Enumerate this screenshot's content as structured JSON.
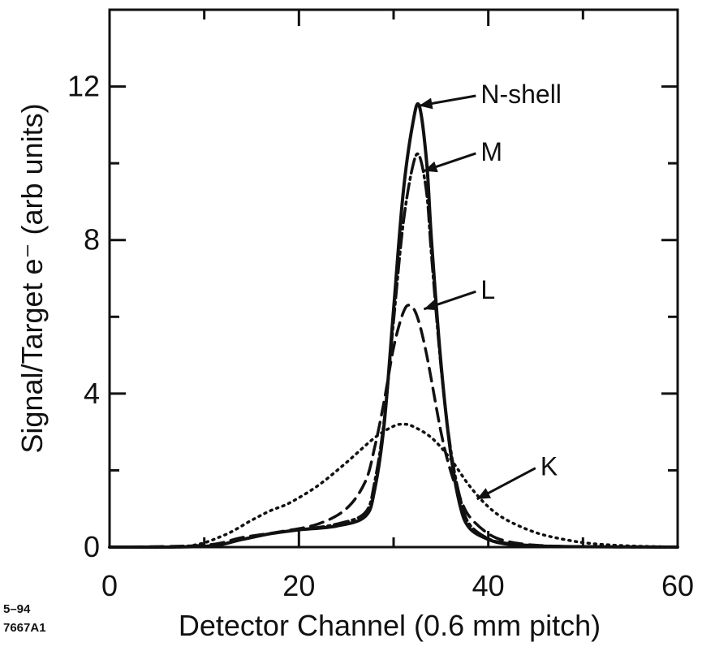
{
  "chart_data": {
    "type": "line",
    "title": "",
    "xlabel": "Detector Channel   (0.6 mm pitch)",
    "ylabel": "Signal/Target e⁻  (arb units)",
    "xlim": [
      0,
      60
    ],
    "ylim": [
      0,
      14
    ],
    "xticks": [
      0,
      20,
      40,
      60
    ],
    "yticks": [
      0,
      4,
      8,
      12
    ],
    "grid": false,
    "series": [
      {
        "name": "N-shell",
        "style": "solid",
        "x": [
          0,
          10,
          14,
          17,
          20,
          24,
          27,
          28,
          29,
          30,
          31,
          32,
          32.7,
          33.5,
          34,
          35,
          36,
          37,
          38,
          40,
          42,
          45,
          50,
          60
        ],
        "y": [
          0,
          0.02,
          0.2,
          0.35,
          0.45,
          0.55,
          0.8,
          1.5,
          3.2,
          6.2,
          9.2,
          11.0,
          11.5,
          10.0,
          8.0,
          4.8,
          2.5,
          1.1,
          0.5,
          0.2,
          0.08,
          0.03,
          0.01,
          0
        ]
      },
      {
        "name": "M",
        "style": "dash-dot",
        "x": [
          0,
          10,
          14,
          17,
          20,
          24,
          27,
          28,
          29,
          30,
          31,
          32,
          32.7,
          33.5,
          34,
          35,
          36,
          37,
          38,
          40,
          42,
          45,
          50,
          60
        ],
        "y": [
          0,
          0.02,
          0.2,
          0.35,
          0.45,
          0.6,
          0.9,
          1.7,
          3.3,
          5.9,
          8.4,
          9.9,
          10.2,
          9.2,
          7.6,
          4.7,
          2.6,
          1.3,
          0.6,
          0.22,
          0.1,
          0.04,
          0.01,
          0
        ]
      },
      {
        "name": "L",
        "style": "dashed",
        "x": [
          0,
          10,
          14,
          18,
          22,
          25,
          27,
          28,
          29,
          30,
          31,
          31.7,
          32.5,
          33.5,
          35,
          36,
          37,
          38,
          40,
          42,
          45,
          50,
          60
        ],
        "y": [
          0,
          0.05,
          0.25,
          0.4,
          0.6,
          1.0,
          1.7,
          2.6,
          3.8,
          5.2,
          6.1,
          6.3,
          6.0,
          5.0,
          3.0,
          2.0,
          1.3,
          0.8,
          0.35,
          0.15,
          0.05,
          0.01,
          0
        ]
      },
      {
        "name": "K",
        "style": "dotted",
        "x": [
          0,
          8,
          12,
          15,
          17,
          19,
          22,
          25,
          28,
          30,
          31,
          32,
          34,
          36,
          38,
          40,
          42,
          45,
          48,
          51,
          55,
          60
        ],
        "y": [
          0,
          0.02,
          0.3,
          0.7,
          0.95,
          1.15,
          1.6,
          2.2,
          2.85,
          3.15,
          3.2,
          3.15,
          2.85,
          2.3,
          1.6,
          1.05,
          0.7,
          0.38,
          0.2,
          0.09,
          0.03,
          0
        ]
      }
    ],
    "annotations": [
      {
        "text": "N-shell",
        "series": "N-shell",
        "point": [
          32.7,
          11.5
        ],
        "label_at": [
          39.2,
          11.8
        ]
      },
      {
        "text": "M",
        "series": "M",
        "point": [
          33.2,
          9.8
        ],
        "label_at": [
          39.2,
          10.3
        ]
      },
      {
        "text": "L",
        "series": "L",
        "point": [
          33.2,
          6.2
        ],
        "label_at": [
          39.2,
          6.7
        ]
      },
      {
        "text": "K",
        "series": "K",
        "point": [
          38.8,
          1.25
        ],
        "label_at": [
          45.5,
          2.1
        ]
      }
    ]
  },
  "figure_id": [
    "5–94",
    "7667A1"
  ]
}
